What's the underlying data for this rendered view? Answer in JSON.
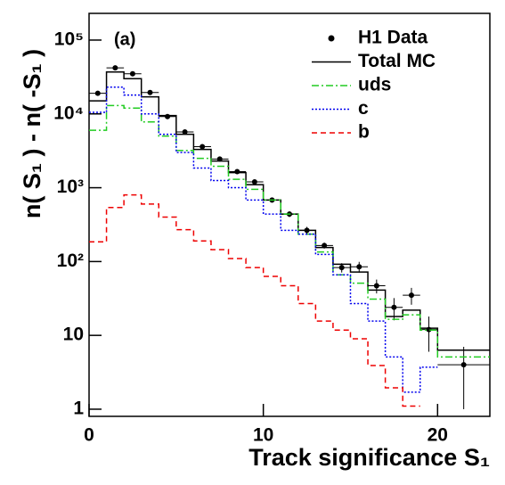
{
  "chart_data": {
    "type": "histogram",
    "annotation": "(a)",
    "x_label": "Track significance S₁",
    "y_label": "n( S₁ ) - n( -S₁ )",
    "bins": [
      0,
      1,
      2,
      3,
      4,
      5,
      6,
      7,
      8,
      9,
      10,
      11,
      12,
      13,
      14,
      15,
      16,
      17,
      18,
      19,
      20,
      23
    ],
    "xlim": [
      0,
      23
    ],
    "xticks": [
      0,
      10,
      20
    ],
    "ylim": [
      0.8,
      230000
    ],
    "log_y": true,
    "yticks": [
      1,
      10,
      {
        "value": 100,
        "label": "10²"
      },
      {
        "value": 1000,
        "label": "10³"
      },
      {
        "value": 10000,
        "label": "10⁴"
      },
      {
        "value": 100000,
        "label": "10⁵"
      }
    ],
    "legend": "upper right",
    "series": [
      {
        "name": "H1 Data",
        "color": "#000000",
        "draw": "points",
        "values": [
          19000,
          42000,
          35000,
          19500,
          9200,
          5700,
          3600,
          2450,
          1650,
          1200,
          680,
          440,
          265,
          165,
          83,
          85,
          47,
          24,
          35,
          12,
          4
        ],
        "errors": [
          300,
          500,
          450,
          300,
          200,
          150,
          120,
          100,
          80,
          70,
          50,
          40,
          30,
          15,
          12,
          14,
          10,
          8,
          9,
          6,
          3
        ]
      },
      {
        "name": "Total MC",
        "color": "#000000",
        "draw": "step",
        "dash": "solid",
        "values": [
          15000,
          37000,
          30000,
          17000,
          9500,
          5300,
          3300,
          2300,
          1600,
          1100,
          680,
          440,
          265,
          155,
          92,
          72,
          41,
          18,
          22,
          12.5,
          6.3
        ]
      },
      {
        "name": "uds",
        "color": "#22cc22",
        "draw": "step",
        "dash": "dashdot",
        "values": [
          6000,
          13000,
          12000,
          7800,
          5000,
          3200,
          2500,
          1950,
          1300,
          950,
          680,
          440,
          235,
          135,
          66,
          51,
          31,
          16.5,
          19,
          11.8,
          5.1
        ]
      },
      {
        "name": "c",
        "color": "#0000ee",
        "draw": "step",
        "dash": "dotted",
        "values": [
          10500,
          23000,
          18000,
          10000,
          5300,
          3000,
          1850,
          1250,
          1000,
          680,
          440,
          265,
          235,
          125,
          66,
          27,
          15.6,
          5.1,
          1.7,
          3.7,
          null
        ]
      },
      {
        "name": "b",
        "color": "#ee0000",
        "draw": "step",
        "dash": "dashed",
        "values": [
          185,
          540,
          800,
          600,
          400,
          270,
          190,
          145,
          110,
          83,
          63,
          47,
          27,
          15.6,
          11.8,
          9,
          3.9,
          1.95,
          1.1,
          null,
          null
        ]
      }
    ]
  }
}
